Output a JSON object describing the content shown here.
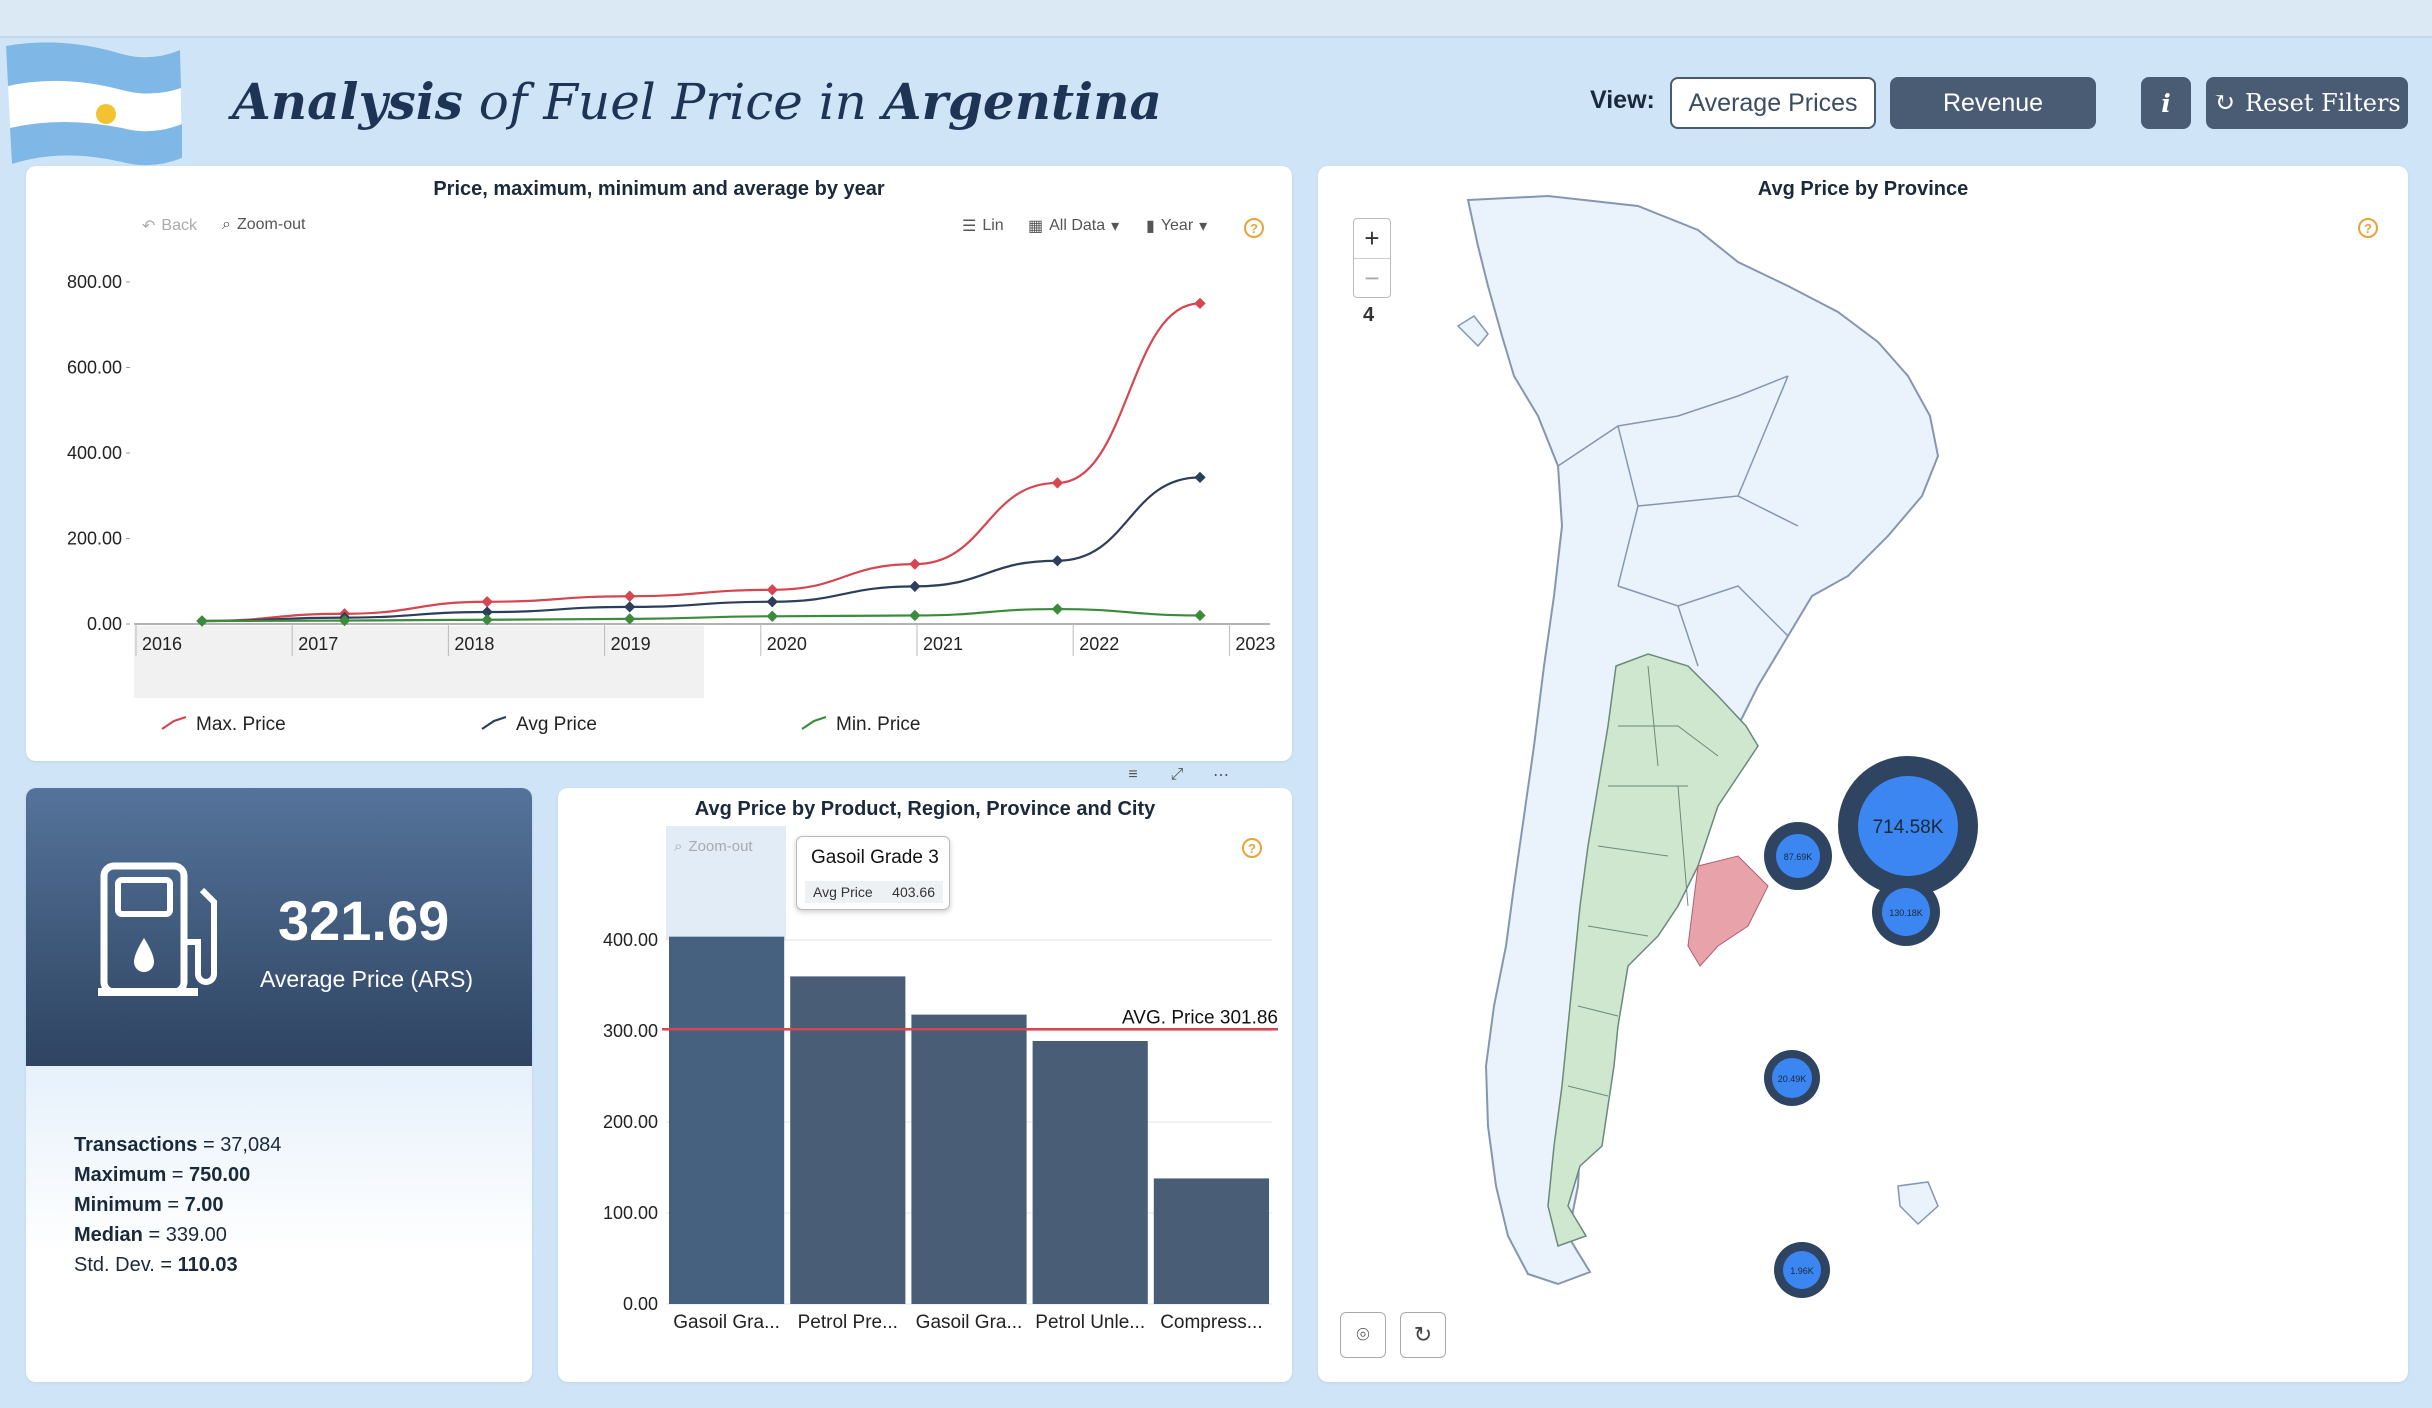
{
  "header": {
    "title_parts": [
      "Analysis",
      "of Fuel Price in",
      "Argentina"
    ],
    "view_label": "View:",
    "btn_avg": "Average Prices",
    "btn_revenue": "Revenue",
    "btn_info": "i",
    "btn_reset": "Reset Filters"
  },
  "line_panel": {
    "title": "Price, maximum, minimum and average by year",
    "back": "Back",
    "zoom_out": "Zoom-out",
    "lin": "Lin",
    "all_data": "All Data",
    "year": "Year",
    "help": "?"
  },
  "map_panel": {
    "title": "Avg Price by Province",
    "zoom_plus": "+",
    "zoom_minus": "−",
    "zoom_level": "4",
    "help": "?",
    "bubbles": [
      {
        "label": "714.58K",
        "value": 714.58
      },
      {
        "label": "87.69K",
        "value": 87.69
      },
      {
        "label": "130.18K",
        "value": 130.18
      },
      {
        "label": "20.49K",
        "value": 20.49
      },
      {
        "label": "1.96K",
        "value": 1.96
      }
    ]
  },
  "kpi": {
    "value": "321.69",
    "label": "Average Price (ARS)",
    "stats": [
      {
        "key": "Transactions",
        "eq": " = ",
        "val": "37,084",
        "bold": false
      },
      {
        "key": "Maximum",
        "eq": " = ",
        "val": "750.00",
        "bold": true
      },
      {
        "key": "Minimum",
        "eq": " = ",
        "val": "7.00",
        "bold": true
      },
      {
        "key": "Median",
        "eq": " = ",
        "val": "339.00",
        "bold": false
      },
      {
        "key": "Std. Dev.",
        "eq": " = ",
        "val": "110.03",
        "bold": true
      }
    ]
  },
  "bar_panel": {
    "title": "Avg Price by Product, Region, Province and City",
    "zoom_out": "Zoom-out",
    "help": "?",
    "avg_line_label": "AVG. Price 301.86",
    "tooltip": {
      "name": "Gasoil Grade 3",
      "metric": "Avg Price",
      "value": "403.66"
    }
  },
  "colors": {
    "max": "#d64550",
    "avg": "#2b3e5a",
    "min": "#3c8a3c",
    "bar": "#4a5d77",
    "accent": "#e8a33d"
  },
  "chart_data": [
    {
      "type": "line",
      "title": "Price, maximum, minimum and average by year",
      "x": [
        "2016",
        "2017",
        "2018",
        "2019",
        "2020",
        "2021",
        "2022",
        "2023"
      ],
      "y_ticks": [
        "0.00",
        "200.00",
        "400.00",
        "600.00",
        "800.00"
      ],
      "ylim": [
        0,
        800
      ],
      "series": [
        {
          "name": "Max. Price",
          "values": [
            7,
            24,
            52,
            65,
            80,
            140,
            330,
            750
          ]
        },
        {
          "name": "Avg Price",
          "values": [
            7,
            15,
            28,
            40,
            52,
            88,
            148,
            343
          ]
        },
        {
          "name": "Min. Price",
          "values": [
            7,
            8,
            10,
            12,
            18,
            20,
            35,
            20
          ]
        }
      ],
      "legend": "bottom"
    },
    {
      "type": "bar",
      "title": "Avg Price by Product, Region, Province and City",
      "categories": [
        "Gasoil Gra...",
        "Petrol Pre...",
        "Gasoil Gra...",
        "Petrol Unle...",
        "Compress..."
      ],
      "values": [
        403.66,
        360,
        318,
        289,
        138
      ],
      "y_ticks": [
        "0.00",
        "100.00",
        "200.00",
        "300.00",
        "400.00"
      ],
      "ylim": [
        0,
        400
      ],
      "reference_line": {
        "label": "AVG. Price 301.86",
        "value": 301.86
      }
    }
  ]
}
